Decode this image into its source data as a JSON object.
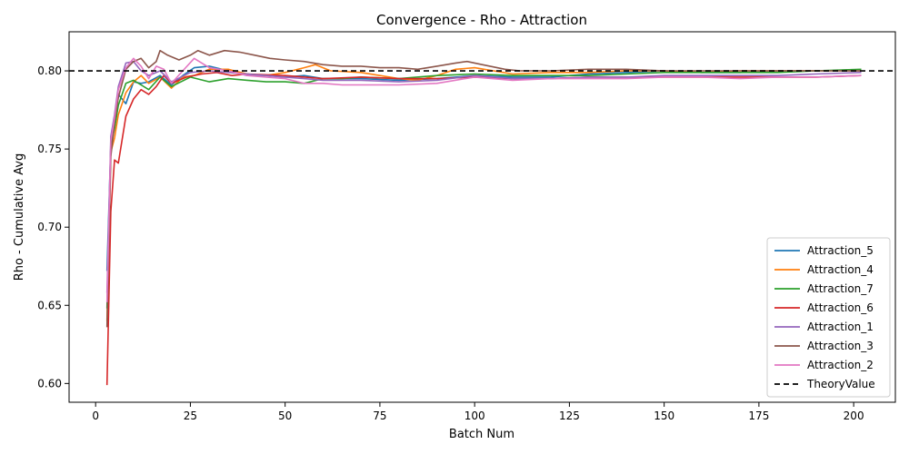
{
  "chart_data": {
    "type": "line",
    "title": "Convergence - Rho - Attraction",
    "xlabel": "Batch Num",
    "ylabel": "Rho - Cumulative Avg",
    "xlim": [
      -7,
      211
    ],
    "ylim": [
      0.588,
      0.825
    ],
    "xticks": [
      0,
      25,
      50,
      75,
      100,
      125,
      150,
      175,
      200
    ],
    "yticks": [
      0.6,
      0.65,
      0.7,
      0.75,
      0.8
    ],
    "grid": false,
    "legend_position": "lower-right",
    "reference_line": {
      "name": "TheoryValue",
      "y": 0.8,
      "color": "#000000",
      "style": "dashed"
    },
    "series": [
      {
        "name": "Attraction_5",
        "color": "#1f77b4",
        "points": [
          [
            3,
            0.672
          ],
          [
            4,
            0.752
          ],
          [
            5,
            0.768
          ],
          [
            6,
            0.785
          ],
          [
            8,
            0.779
          ],
          [
            10,
            0.793
          ],
          [
            12,
            0.792
          ],
          [
            14,
            0.793
          ],
          [
            17,
            0.797
          ],
          [
            20,
            0.791
          ],
          [
            23,
            0.797
          ],
          [
            26,
            0.802
          ],
          [
            30,
            0.803
          ],
          [
            35,
            0.8
          ],
          [
            40,
            0.797
          ],
          [
            45,
            0.797
          ],
          [
            50,
            0.796
          ],
          [
            55,
            0.797
          ],
          [
            60,
            0.795
          ],
          [
            65,
            0.795
          ],
          [
            70,
            0.795
          ],
          [
            80,
            0.794
          ],
          [
            90,
            0.795
          ],
          [
            100,
            0.797
          ],
          [
            110,
            0.796
          ],
          [
            120,
            0.796
          ],
          [
            130,
            0.798
          ],
          [
            140,
            0.799
          ],
          [
            150,
            0.8
          ],
          [
            160,
            0.799
          ],
          [
            170,
            0.799
          ],
          [
            180,
            0.8
          ],
          [
            190,
            0.8
          ],
          [
            202,
            0.8
          ]
        ]
      },
      {
        "name": "Attraction_4",
        "color": "#ff7f0e",
        "points": [
          [
            3,
            0.64
          ],
          [
            4,
            0.748
          ],
          [
            5,
            0.757
          ],
          [
            6,
            0.772
          ],
          [
            8,
            0.786
          ],
          [
            10,
            0.793
          ],
          [
            12,
            0.797
          ],
          [
            14,
            0.792
          ],
          [
            17,
            0.796
          ],
          [
            20,
            0.789
          ],
          [
            23,
            0.796
          ],
          [
            26,
            0.797
          ],
          [
            30,
            0.801
          ],
          [
            35,
            0.801
          ],
          [
            40,
            0.798
          ],
          [
            45,
            0.797
          ],
          [
            50,
            0.799
          ],
          [
            55,
            0.802
          ],
          [
            58,
            0.804
          ],
          [
            62,
            0.8
          ],
          [
            70,
            0.799
          ],
          [
            80,
            0.795
          ],
          [
            85,
            0.794
          ],
          [
            90,
            0.797
          ],
          [
            95,
            0.801
          ],
          [
            100,
            0.802
          ],
          [
            110,
            0.798
          ],
          [
            120,
            0.799
          ],
          [
            130,
            0.799
          ],
          [
            140,
            0.8
          ],
          [
            150,
            0.8
          ],
          [
            160,
            0.799
          ],
          [
            170,
            0.8
          ],
          [
            180,
            0.8
          ],
          [
            190,
            0.8
          ],
          [
            202,
            0.8
          ]
        ]
      },
      {
        "name": "Attraction_7",
        "color": "#2ca02c",
        "points": [
          [
            3,
            0.648
          ],
          [
            4,
            0.752
          ],
          [
            5,
            0.763
          ],
          [
            6,
            0.778
          ],
          [
            8,
            0.792
          ],
          [
            10,
            0.794
          ],
          [
            12,
            0.791
          ],
          [
            14,
            0.788
          ],
          [
            17,
            0.796
          ],
          [
            20,
            0.79
          ],
          [
            25,
            0.796
          ],
          [
            30,
            0.793
          ],
          [
            35,
            0.795
          ],
          [
            40,
            0.794
          ],
          [
            45,
            0.793
          ],
          [
            50,
            0.793
          ],
          [
            55,
            0.792
          ],
          [
            60,
            0.795
          ],
          [
            65,
            0.795
          ],
          [
            70,
            0.796
          ],
          [
            80,
            0.795
          ],
          [
            90,
            0.797
          ],
          [
            100,
            0.798
          ],
          [
            110,
            0.797
          ],
          [
            120,
            0.797
          ],
          [
            130,
            0.797
          ],
          [
            140,
            0.798
          ],
          [
            150,
            0.799
          ],
          [
            160,
            0.799
          ],
          [
            170,
            0.799
          ],
          [
            180,
            0.799
          ],
          [
            190,
            0.8
          ],
          [
            202,
            0.801
          ]
        ]
      },
      {
        "name": "Attraction_6",
        "color": "#d62728",
        "points": [
          [
            3,
            0.599
          ],
          [
            4,
            0.71
          ],
          [
            5,
            0.743
          ],
          [
            6,
            0.741
          ],
          [
            8,
            0.771
          ],
          [
            10,
            0.782
          ],
          [
            12,
            0.788
          ],
          [
            14,
            0.785
          ],
          [
            16,
            0.79
          ],
          [
            18,
            0.797
          ],
          [
            20,
            0.792
          ],
          [
            24,
            0.796
          ],
          [
            28,
            0.798
          ],
          [
            32,
            0.799
          ],
          [
            36,
            0.797
          ],
          [
            40,
            0.798
          ],
          [
            50,
            0.797
          ],
          [
            60,
            0.795
          ],
          [
            70,
            0.796
          ],
          [
            80,
            0.795
          ],
          [
            90,
            0.795
          ],
          [
            100,
            0.796
          ],
          [
            110,
            0.795
          ],
          [
            120,
            0.795
          ],
          [
            130,
            0.796
          ],
          [
            140,
            0.796
          ],
          [
            150,
            0.796
          ],
          [
            160,
            0.796
          ],
          [
            170,
            0.796
          ],
          [
            180,
            0.796
          ],
          [
            190,
            0.796
          ],
          [
            202,
            0.797
          ]
        ]
      },
      {
        "name": "Attraction_1",
        "color": "#9467bd",
        "points": [
          [
            3,
            0.658
          ],
          [
            4,
            0.758
          ],
          [
            5,
            0.772
          ],
          [
            6,
            0.79
          ],
          [
            8,
            0.805
          ],
          [
            10,
            0.806
          ],
          [
            12,
            0.8
          ],
          [
            14,
            0.797
          ],
          [
            17,
            0.8
          ],
          [
            20,
            0.793
          ],
          [
            25,
            0.799
          ],
          [
            30,
            0.8
          ],
          [
            35,
            0.799
          ],
          [
            40,
            0.798
          ],
          [
            45,
            0.797
          ],
          [
            50,
            0.796
          ],
          [
            55,
            0.795
          ],
          [
            60,
            0.794
          ],
          [
            70,
            0.794
          ],
          [
            80,
            0.793
          ],
          [
            90,
            0.794
          ],
          [
            100,
            0.797
          ],
          [
            110,
            0.795
          ],
          [
            120,
            0.795
          ],
          [
            130,
            0.796
          ],
          [
            140,
            0.796
          ],
          [
            150,
            0.797
          ],
          [
            160,
            0.797
          ],
          [
            170,
            0.797
          ],
          [
            180,
            0.797
          ],
          [
            190,
            0.798
          ],
          [
            202,
            0.799
          ]
        ]
      },
      {
        "name": "Attraction_3",
        "color": "#8c564b",
        "points": [
          [
            3,
            0.636
          ],
          [
            4,
            0.745
          ],
          [
            5,
            0.767
          ],
          [
            6,
            0.783
          ],
          [
            8,
            0.801
          ],
          [
            10,
            0.806
          ],
          [
            12,
            0.808
          ],
          [
            14,
            0.802
          ],
          [
            16,
            0.806
          ],
          [
            17,
            0.813
          ],
          [
            19,
            0.81
          ],
          [
            22,
            0.807
          ],
          [
            25,
            0.81
          ],
          [
            27,
            0.813
          ],
          [
            30,
            0.81
          ],
          [
            34,
            0.813
          ],
          [
            38,
            0.812
          ],
          [
            42,
            0.81
          ],
          [
            46,
            0.808
          ],
          [
            50,
            0.807
          ],
          [
            55,
            0.806
          ],
          [
            60,
            0.804
          ],
          [
            65,
            0.803
          ],
          [
            70,
            0.803
          ],
          [
            75,
            0.802
          ],
          [
            80,
            0.802
          ],
          [
            85,
            0.801
          ],
          [
            90,
            0.803
          ],
          [
            95,
            0.805
          ],
          [
            98,
            0.806
          ],
          [
            102,
            0.804
          ],
          [
            108,
            0.801
          ],
          [
            112,
            0.8
          ],
          [
            120,
            0.8
          ],
          [
            130,
            0.801
          ],
          [
            140,
            0.801
          ],
          [
            150,
            0.8
          ],
          [
            160,
            0.8
          ],
          [
            170,
            0.8
          ],
          [
            180,
            0.8
          ],
          [
            190,
            0.8
          ],
          [
            202,
            0.8
          ]
        ]
      },
      {
        "name": "Attraction_2",
        "color": "#e377c2",
        "points": [
          [
            3,
            0.652
          ],
          [
            4,
            0.755
          ],
          [
            5,
            0.77
          ],
          [
            6,
            0.788
          ],
          [
            8,
            0.802
          ],
          [
            10,
            0.808
          ],
          [
            12,
            0.803
          ],
          [
            14,
            0.795
          ],
          [
            16,
            0.803
          ],
          [
            18,
            0.801
          ],
          [
            20,
            0.792
          ],
          [
            23,
            0.8
          ],
          [
            26,
            0.808
          ],
          [
            30,
            0.802
          ],
          [
            35,
            0.8
          ],
          [
            40,
            0.797
          ],
          [
            45,
            0.796
          ],
          [
            50,
            0.795
          ],
          [
            55,
            0.792
          ],
          [
            60,
            0.792
          ],
          [
            65,
            0.791
          ],
          [
            70,
            0.791
          ],
          [
            80,
            0.791
          ],
          [
            90,
            0.792
          ],
          [
            100,
            0.796
          ],
          [
            110,
            0.794
          ],
          [
            120,
            0.795
          ],
          [
            130,
            0.795
          ],
          [
            140,
            0.795
          ],
          [
            150,
            0.796
          ],
          [
            160,
            0.796
          ],
          [
            170,
            0.795
          ],
          [
            180,
            0.796
          ],
          [
            190,
            0.796
          ],
          [
            202,
            0.797
          ]
        ]
      }
    ]
  }
}
